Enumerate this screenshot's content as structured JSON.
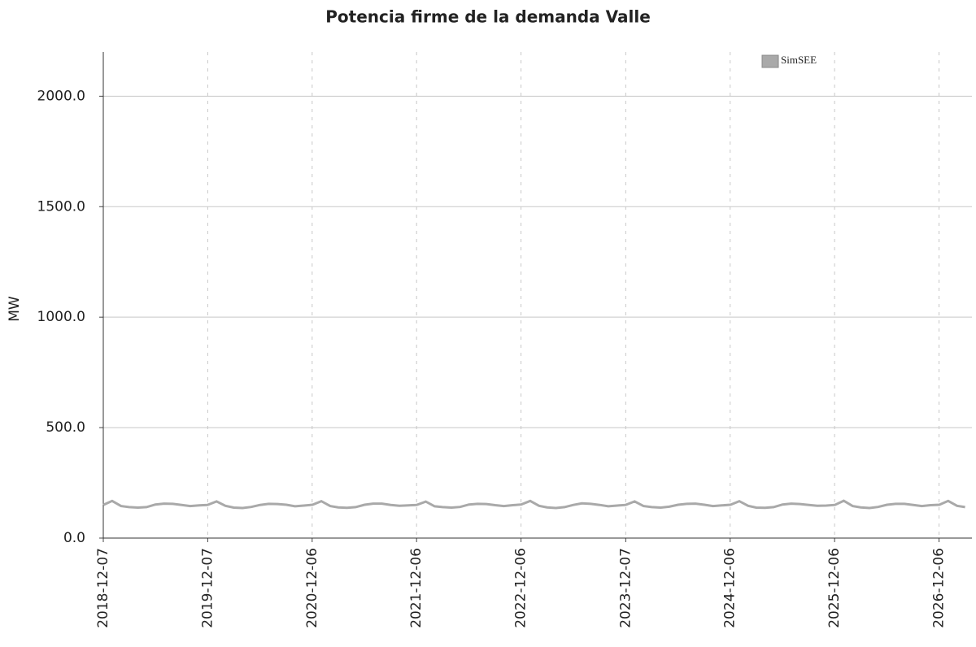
{
  "chart_data": {
    "type": "line",
    "title": "Potencia firme de la demanda Valle",
    "y_label": "MW",
    "x": [
      "2018-12-07",
      "2019-01-07",
      "2019-02-07",
      "2019-03-07",
      "2019-04-07",
      "2019-05-07",
      "2019-06-07",
      "2019-07-07",
      "2019-08-07",
      "2019-09-07",
      "2019-10-07",
      "2019-11-07",
      "2019-12-07",
      "2020-01-07",
      "2020-02-07",
      "2020-03-07",
      "2020-04-07",
      "2020-05-07",
      "2020-06-07",
      "2020-07-07",
      "2020-08-07",
      "2020-09-07",
      "2020-10-07",
      "2020-11-07",
      "2020-12-07",
      "2021-01-07",
      "2021-02-07",
      "2021-03-07",
      "2021-04-07",
      "2021-05-07",
      "2021-06-07",
      "2021-07-07",
      "2021-08-07",
      "2021-09-07",
      "2021-10-07",
      "2021-11-07",
      "2021-12-07",
      "2022-01-07",
      "2022-02-07",
      "2022-03-07",
      "2022-04-07",
      "2022-05-07",
      "2022-06-07",
      "2022-07-07",
      "2022-08-07",
      "2022-09-07",
      "2022-10-07",
      "2022-11-07",
      "2022-12-07",
      "2023-01-07",
      "2023-02-07",
      "2023-03-07",
      "2023-04-07",
      "2023-05-07",
      "2023-06-07",
      "2023-07-07",
      "2023-08-07",
      "2023-09-07",
      "2023-10-07",
      "2023-11-07",
      "2023-12-07",
      "2024-01-07",
      "2024-02-07",
      "2024-03-07",
      "2024-04-07",
      "2024-05-07",
      "2024-06-07",
      "2024-07-07",
      "2024-08-07",
      "2024-09-07",
      "2024-10-07",
      "2024-11-07",
      "2024-12-07",
      "2025-01-07",
      "2025-02-07",
      "2025-03-07",
      "2025-04-07",
      "2025-05-07",
      "2025-06-07",
      "2025-07-07",
      "2025-08-07",
      "2025-09-07",
      "2025-10-07",
      "2025-11-07",
      "2025-12-07",
      "2026-01-07",
      "2026-02-07",
      "2026-03-07",
      "2026-04-07",
      "2026-05-07",
      "2026-06-07",
      "2026-07-07",
      "2026-08-07",
      "2026-09-07",
      "2026-10-07",
      "2026-11-07",
      "2026-12-07",
      "2027-01-07",
      "2027-02-07",
      "2027-03-07"
    ],
    "series": [
      {
        "name": "SimSEE",
        "color": "#a9a9a9",
        "values": [
          150,
          168,
          145,
          140,
          138,
          140,
          152,
          156,
          155,
          150,
          145,
          148,
          150,
          166,
          146,
          138,
          136,
          141,
          150,
          155,
          154,
          151,
          144,
          147,
          151,
          167,
          145,
          139,
          137,
          140,
          151,
          156,
          156,
          150,
          146,
          148,
          150,
          165,
          144,
          140,
          138,
          141,
          152,
          155,
          154,
          149,
          145,
          149,
          152,
          168,
          146,
          139,
          136,
          140,
          150,
          157,
          155,
          150,
          144,
          147,
          150,
          166,
          145,
          140,
          138,
          142,
          151,
          155,
          156,
          151,
          145,
          148,
          151,
          167,
          146,
          138,
          137,
          140,
          152,
          156,
          154,
          150,
          146,
          147,
          150,
          169,
          145,
          139,
          136,
          141,
          151,
          155,
          155,
          150,
          145,
          149,
          151,
          168,
          146,
          140
        ]
      }
    ],
    "xlim": [
      "2018-12-07",
      "2027-03-31"
    ],
    "xticks": [
      "2018-12-07",
      "2019-12-07",
      "2020-12-06",
      "2021-12-06",
      "2022-12-06",
      "2023-12-07",
      "2024-12-06",
      "2025-12-06",
      "2026-12-06"
    ],
    "ylim": [
      0,
      2200
    ],
    "yticks": [
      {
        "value": 0,
        "label": "0.0"
      },
      {
        "value": 500,
        "label": "500.0"
      },
      {
        "value": 1000,
        "label": "1000.0"
      },
      {
        "value": 1500,
        "label": "1500.0"
      },
      {
        "value": 2000,
        "label": "2000.0"
      }
    ],
    "grid": true,
    "legend": "upper right"
  }
}
